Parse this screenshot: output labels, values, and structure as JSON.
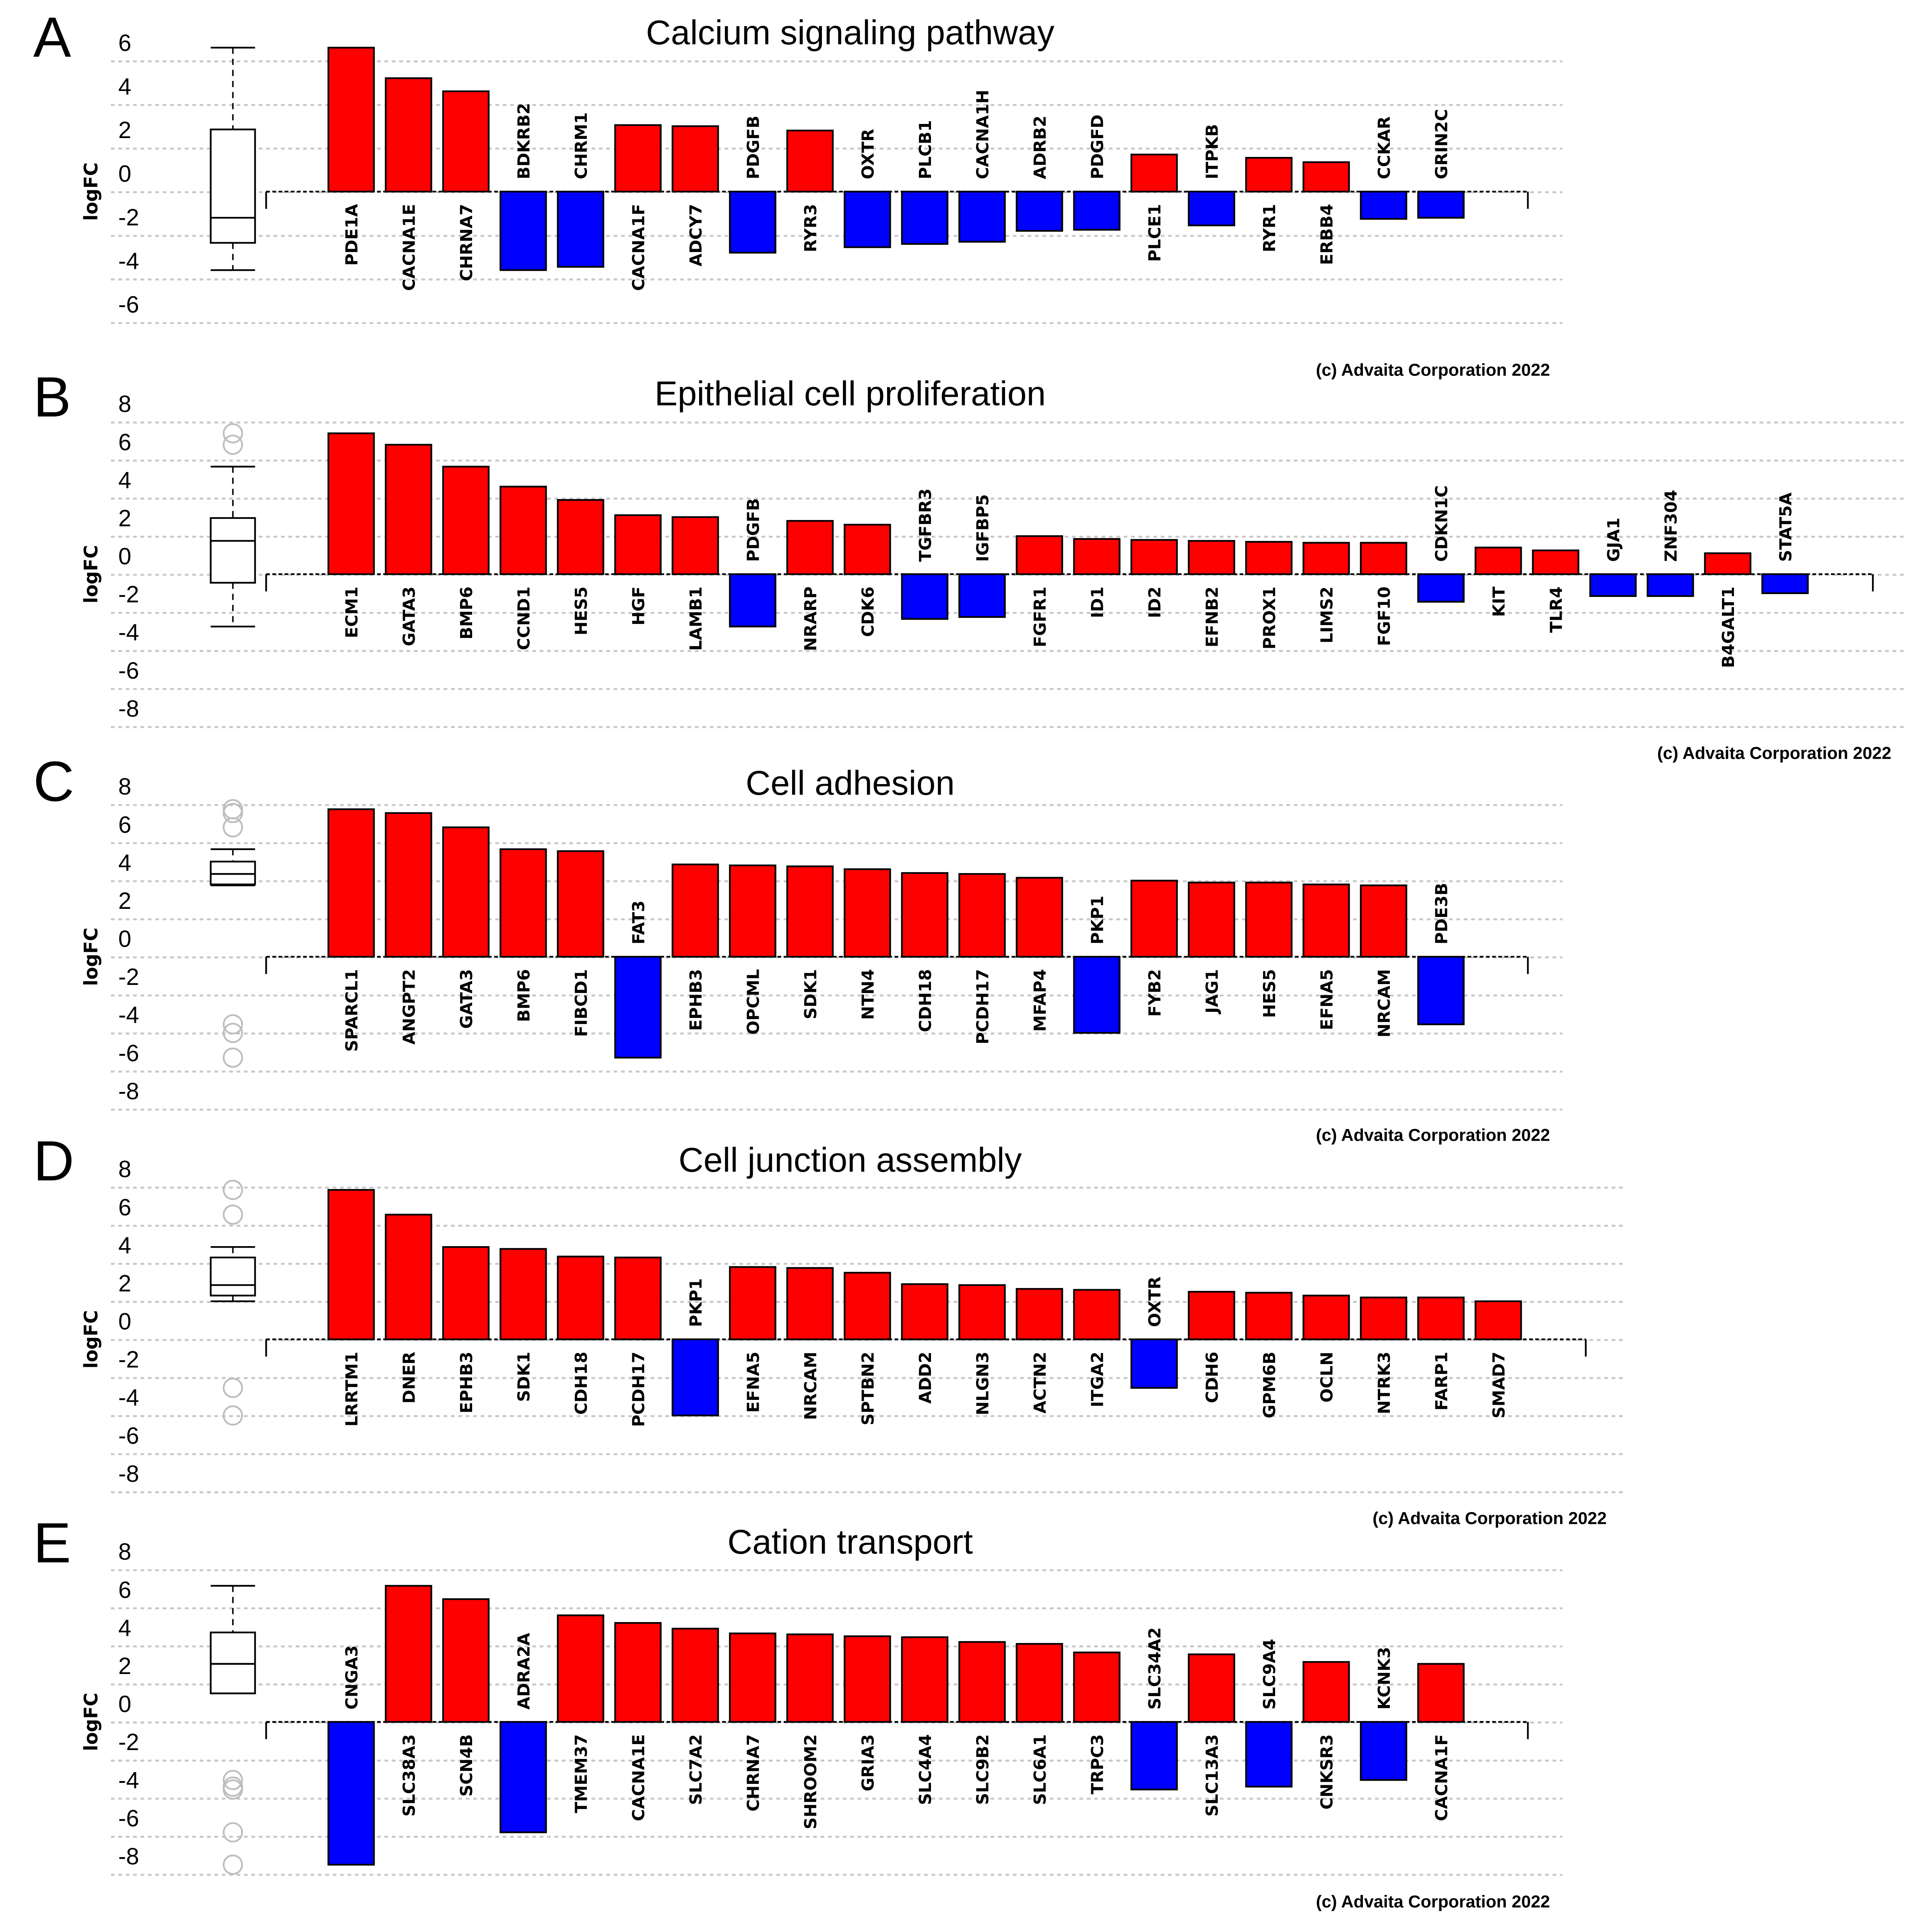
{
  "colors": {
    "up": "#ff0000",
    "down": "#0000ff",
    "grid": "#c8c8c8"
  },
  "chart_data": [
    {
      "type": "bar",
      "panel": "A",
      "title": "Calcium signaling pathway",
      "ylabel": "logFC",
      "ylim": [
        -6,
        6
      ],
      "yticks": [
        "6",
        "4",
        "2",
        "0",
        "-2",
        "-4",
        "-6"
      ],
      "copyright": "(c) Advaita Corporation 2022",
      "categories": [
        "PDE1A",
        "CACNA1E",
        "CHRNA7",
        "BDKRB2",
        "CHRM1",
        "CACNA1F",
        "ADCY7",
        "PDGFB",
        "RYR3",
        "OXTR",
        "PLCB1",
        "CACNA1H",
        "ADRB2",
        "PDGFD",
        "PLCE1",
        "ITPKB",
        "RYR1",
        "ERBB4",
        "CCKAR",
        "GRIN2C"
      ],
      "values": [
        6.6,
        5.2,
        4.6,
        -3.6,
        -3.45,
        3.05,
        3.0,
        -2.8,
        2.8,
        -2.55,
        -2.4,
        -2.3,
        -1.8,
        -1.75,
        1.7,
        -1.55,
        1.55,
        1.35,
        -1.25,
        -1.2
      ],
      "boxplot": {
        "whisker_high": 6.6,
        "q3": 2.85,
        "median": -1.2,
        "q1": -2.35,
        "whisker_low": -3.6,
        "outliers": []
      }
    },
    {
      "type": "bar",
      "panel": "B",
      "title": "Epithelial cell proliferation",
      "ylabel": "logFC",
      "ylim": [
        -8,
        8
      ],
      "yticks": [
        "8",
        "6",
        "4",
        "2",
        "0",
        "-2",
        "-4",
        "-6",
        "-8"
      ],
      "copyright": "(c) Advaita Corporation 2022",
      "categories": [
        "ECM1",
        "GATA3",
        "BMP6",
        "CCND1",
        "HES5",
        "HGF",
        "LAMB1",
        "PDGFB",
        "NRARP",
        "CDK6",
        "TGFBR3",
        "IGFBP5",
        "FGFR1",
        "ID1",
        "ID2",
        "EFNB2",
        "PROX1",
        "LIMS2",
        "FGF10",
        "CDKN1C",
        "KIT",
        "TLR4",
        "GJA1",
        "ZNF304",
        "B4GALT1",
        "STAT5A"
      ],
      "values": [
        7.4,
        6.8,
        5.65,
        4.6,
        3.9,
        3.1,
        3.0,
        -2.75,
        2.8,
        2.6,
        -2.35,
        -2.25,
        2.0,
        1.85,
        1.8,
        1.75,
        1.7,
        1.65,
        1.65,
        -1.45,
        1.4,
        1.25,
        -1.15,
        -1.15,
        1.1,
        -1.0
      ],
      "boxplot": {
        "whisker_high": 5.65,
        "q3": 2.95,
        "median": 1.75,
        "q1": -0.45,
        "whisker_low": -2.75,
        "outliers": [
          7.4,
          6.8
        ]
      }
    },
    {
      "type": "bar",
      "panel": "C",
      "title": "Cell adhesion",
      "ylabel": "logFC",
      "ylim": [
        -8,
        8
      ],
      "yticks": [
        "8",
        "6",
        "4",
        "2",
        "0",
        "-2",
        "-4",
        "-6",
        "-8"
      ],
      "copyright": "(c) Advaita Corporation 2022",
      "categories": [
        "SPARCL1",
        "ANGPT2",
        "GATA3",
        "BMP6",
        "FIBCD1",
        "FAT3",
        "EPHB3",
        "OPCML",
        "SDK1",
        "NTN4",
        "CDH18",
        "PCDH17",
        "MFAP4",
        "PKP1",
        "FYB2",
        "JAG1",
        "HES5",
        "EFNA5",
        "NRCAM",
        "PDE3B"
      ],
      "values": [
        7.75,
        7.55,
        6.8,
        5.65,
        5.55,
        -5.3,
        4.85,
        4.8,
        4.75,
        4.6,
        4.4,
        4.35,
        4.15,
        -4.0,
        4.0,
        3.9,
        3.9,
        3.8,
        3.75,
        -3.55
      ],
      "boxplot": {
        "whisker_high": 5.65,
        "q3": 5.0,
        "median": 4.35,
        "q1": 3.8,
        "whisker_low": 3.75,
        "outliers": [
          7.75,
          7.55,
          6.8,
          -3.55,
          -4.0,
          -5.3
        ]
      }
    },
    {
      "type": "bar",
      "panel": "D",
      "title": "Cell junction assembly",
      "ylabel": "logFC",
      "ylim": [
        -8,
        8
      ],
      "yticks": [
        "8",
        "6",
        "4",
        "2",
        "0",
        "-2",
        "-4",
        "-6",
        "-8"
      ],
      "copyright": "(c) Advaita Corporation 2022",
      "categories": [
        "LRRTM1",
        "DNER",
        "EPHB3",
        "SDK1",
        "CDH18",
        "PCDH17",
        "PKP1",
        "EFNA5",
        "NRCAM",
        "SPTBN2",
        "ADD2",
        "NLGN3",
        "ACTN2",
        "ITGA2",
        "OXTR",
        "CDH6",
        "GPM6B",
        "OCLN",
        "NTRK3",
        "FARP1",
        "SMAD7"
      ],
      "values": [
        7.85,
        6.55,
        4.85,
        4.75,
        4.35,
        4.3,
        -4.0,
        3.8,
        3.75,
        3.5,
        2.9,
        2.85,
        2.65,
        2.6,
        -2.55,
        2.5,
        2.45,
        2.3,
        2.2,
        2.2,
        2.0
      ],
      "boxplot": {
        "whisker_high": 4.85,
        "q3": 4.3,
        "median": 2.85,
        "q1": 2.3,
        "whisker_low": 2.0,
        "outliers": [
          7.85,
          6.55,
          -2.55,
          -4.0
        ]
      }
    },
    {
      "type": "bar",
      "panel": "E",
      "title": "Cation transport",
      "ylabel": "logFC",
      "ylim": [
        -8,
        8
      ],
      "yticks": [
        "8",
        "6",
        "4",
        "2",
        "0",
        "-2",
        "-4",
        "-6",
        "-8"
      ],
      "copyright": "(c) Advaita Corporation 2022",
      "categories": [
        "CNGA3",
        "SLC38A3",
        "SCN4B",
        "ADRA2A",
        "TMEM37",
        "CACNA1E",
        "SLC7A2",
        "CHRNA7",
        "SHROOM2",
        "GRIA3",
        "SLC4A4",
        "SLC9B2",
        "SLC6A1",
        "TRPC3",
        "SLC34A2",
        "SLC13A3",
        "SLC9A4",
        "CNKSR3",
        "KCNK3",
        "CACNA1F"
      ],
      "values": [
        -7.5,
        7.15,
        6.45,
        -5.8,
        5.6,
        5.2,
        4.9,
        4.65,
        4.6,
        4.5,
        4.45,
        4.2,
        4.1,
        3.65,
        -3.55,
        3.55,
        -3.4,
        3.15,
        -3.05,
        3.05
      ],
      "boxplot": {
        "whisker_high": 7.15,
        "q3": 4.7,
        "median": 3.05,
        "q1": 1.5,
        "whisker_low": 1.5,
        "outliers": [
          -3.05,
          -3.4,
          -3.55,
          -5.8,
          -7.5
        ]
      }
    }
  ]
}
